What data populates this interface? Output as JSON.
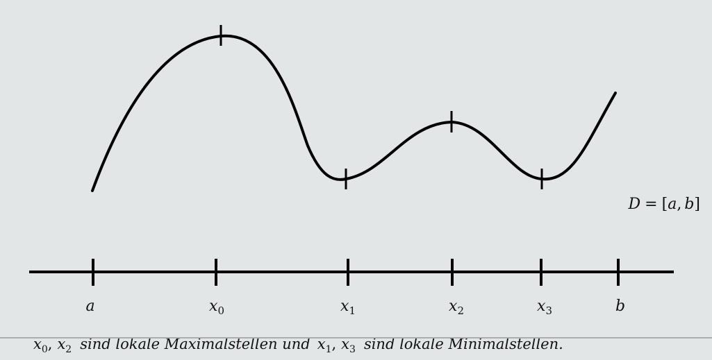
{
  "diagram": {
    "domain_label": {
      "D": "D",
      "eq": "=",
      "lb": "[",
      "a": "a",
      "comma": ",",
      "b": "b",
      "rb": "]"
    },
    "ticks": [
      {
        "id": "a",
        "main": "a",
        "sub": ""
      },
      {
        "id": "x0",
        "main": "x",
        "sub": "0"
      },
      {
        "id": "x1",
        "main": "x",
        "sub": "1"
      },
      {
        "id": "x2",
        "main": "x",
        "sub": "2"
      },
      {
        "id": "x3",
        "main": "x",
        "sub": "3"
      },
      {
        "id": "b",
        "main": "b",
        "sub": ""
      }
    ],
    "caption": {
      "x0": "x",
      "x0sub": "0",
      "c1": ",",
      "x2": "x",
      "x2sub": "2",
      "t1": "sind lokale Maximalstellen und",
      "x1": "x",
      "x1sub": "1",
      "c2": ",",
      "x3": "x",
      "x3sub": "3",
      "t2": "sind lokale Minimalstellen."
    },
    "colors": {
      "background": "#e3e6e7",
      "ink": "#000000"
    }
  }
}
